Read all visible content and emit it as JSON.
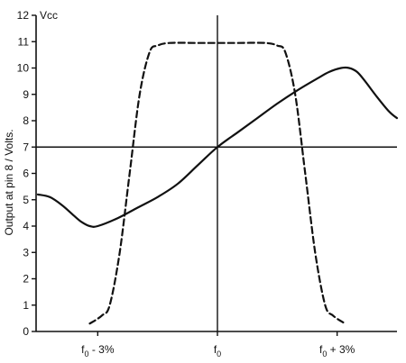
{
  "chart_data": {
    "type": "line",
    "ylabel": "Output at pin 8 / Volts.",
    "y_top_label": "Vcc",
    "ylim": [
      0,
      12
    ],
    "yticks": [
      "0",
      "1",
      "2",
      "3",
      "4",
      "5",
      "6",
      "7",
      "8",
      "9",
      "10",
      "11",
      "12"
    ],
    "xlim": [
      -4.5,
      4.5
    ],
    "xticks": [
      {
        "pos": -3,
        "label": "f0 - 3%"
      },
      {
        "pos": 0,
        "label": "f0"
      },
      {
        "pos": 3,
        "label": "f0 + 3%"
      }
    ],
    "reference_line_y": 7,
    "grid": false,
    "legend": "none",
    "series": [
      {
        "style": "solid",
        "x": [
          -4.5,
          -4.2,
          -3.9,
          -3.6,
          -3.4,
          -3.2,
          -3.0,
          -2.5,
          -2.0,
          -1.5,
          -1.0,
          -0.5,
          0.0,
          0.5,
          1.0,
          1.5,
          2.0,
          2.5,
          2.8,
          3.1,
          3.3,
          3.5,
          3.7,
          4.0,
          4.3,
          4.5
        ],
        "y": [
          5.2,
          5.1,
          4.8,
          4.4,
          4.15,
          4.0,
          4.0,
          4.3,
          4.7,
          5.1,
          5.6,
          6.3,
          7.0,
          7.55,
          8.1,
          8.65,
          9.15,
          9.6,
          9.85,
          10.0,
          10.0,
          9.85,
          9.5,
          8.9,
          8.35,
          8.1
        ]
      },
      {
        "style": "dashed",
        "x": [
          -3.2,
          -2.9,
          -2.7,
          -2.45,
          -2.2,
          -1.95,
          -1.7,
          -1.5,
          -1.2,
          -0.5,
          0.0,
          0.5,
          1.2,
          1.5,
          1.7,
          1.95,
          2.2,
          2.45,
          2.7,
          2.9,
          3.2
        ],
        "y": [
          0.3,
          0.6,
          1.0,
          3.0,
          6.0,
          9.0,
          10.6,
          10.85,
          10.95,
          10.95,
          10.95,
          10.95,
          10.95,
          10.85,
          10.6,
          9.0,
          6.0,
          3.0,
          1.0,
          0.6,
          0.3
        ]
      }
    ]
  }
}
